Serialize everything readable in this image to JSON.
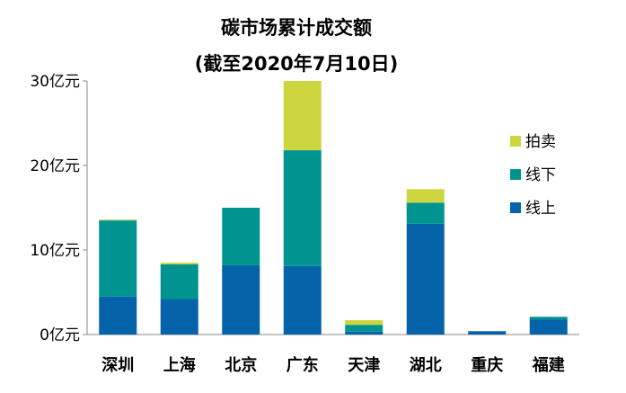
{
  "chart_data": {
    "type": "bar",
    "stacked": true,
    "title": "碳市场累计成交额",
    "subtitle": "(截至2020年7月10日)",
    "xlabel": "",
    "ylabel": "",
    "ylim": [
      0,
      30
    ],
    "yticks": [
      0,
      10,
      20,
      30
    ],
    "ytick_labels": [
      "0亿元",
      "10亿元",
      "20亿元",
      "30亿元"
    ],
    "grid": false,
    "legend_position": "right",
    "categories": [
      "深圳",
      "上海",
      "北京",
      "广东",
      "天津",
      "湖北",
      "重庆",
      "福建"
    ],
    "series": [
      {
        "name": "线上",
        "color": "#0563A9",
        "values": [
          4.5,
          4.2,
          8.2,
          8.1,
          0.35,
          13.1,
          0.4,
          1.8
        ]
      },
      {
        "name": "线下",
        "color": "#009490",
        "values": [
          9.0,
          4.1,
          6.8,
          13.7,
          0.8,
          2.5,
          0.0,
          0.3
        ]
      },
      {
        "name": "拍卖",
        "color": "#CDD63E",
        "values": [
          0.1,
          0.2,
          0.0,
          8.2,
          0.55,
          1.6,
          0.0,
          0.0
        ]
      }
    ],
    "legend_order": [
      "拍卖",
      "线下",
      "线上"
    ]
  }
}
